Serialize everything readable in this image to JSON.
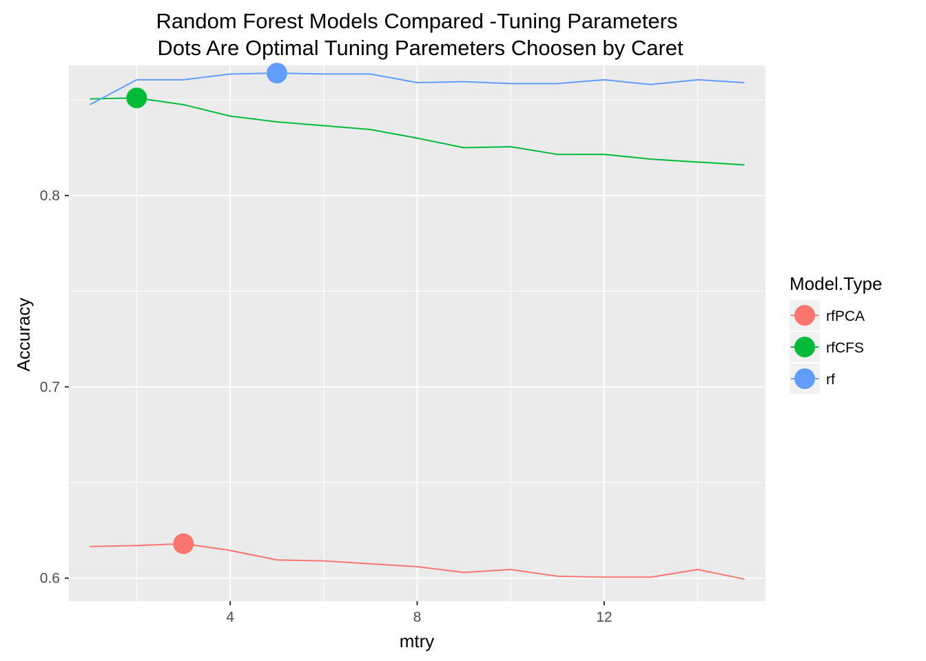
{
  "chart_data": {
    "type": "line",
    "title_lines": [
      "Random Forest Models Compared -Tuning Parameters",
      "Dots Are Optimal Tuning Paremeters Choosen by Caret"
    ],
    "xlabel": "mtry",
    "ylabel": "Accuracy",
    "xlim": [
      0.55,
      15.45
    ],
    "ylim": [
      0.588,
      0.868
    ],
    "x_major_ticks": [
      4,
      8,
      12
    ],
    "x_minor_ticks": [
      2,
      6,
      10,
      14
    ],
    "x_tick_labels": [
      "4",
      "8",
      "12"
    ],
    "y_major_ticks": [
      0.6,
      0.7,
      0.8
    ],
    "y_minor_ticks": [
      0.65,
      0.75,
      0.85
    ],
    "y_tick_labels": [
      "0.6",
      "0.7",
      "0.8"
    ],
    "grid": true,
    "legend": {
      "title": "Model.Type",
      "position": "right",
      "entries": [
        "rfPCA",
        "rfCFS",
        "rf"
      ]
    },
    "series": [
      {
        "name": "rfPCA",
        "color": "#F8766D",
        "x": [
          1,
          2,
          3,
          4,
          5,
          6,
          7,
          8,
          9,
          10,
          11,
          12,
          13,
          14,
          15
        ],
        "y": [
          0.6165,
          0.617,
          0.618,
          0.6145,
          0.6095,
          0.609,
          0.6075,
          0.606,
          0.603,
          0.6045,
          0.601,
          0.6005,
          0.6005,
          0.6045,
          0.5995
        ],
        "optimal": {
          "x": 3,
          "y": 0.618
        }
      },
      {
        "name": "rfCFS",
        "color": "#00BA38",
        "x": [
          1,
          2,
          3,
          4,
          5,
          6,
          7,
          8,
          9,
          10,
          11,
          12,
          13,
          14,
          15
        ],
        "y": [
          0.8505,
          0.851,
          0.8475,
          0.8415,
          0.8385,
          0.8365,
          0.8345,
          0.83,
          0.825,
          0.8255,
          0.8215,
          0.8215,
          0.819,
          0.8175,
          0.816
        ],
        "optimal": {
          "x": 2,
          "y": 0.851
        }
      },
      {
        "name": "rf",
        "color": "#619CFF",
        "x": [
          1,
          2,
          3,
          4,
          5,
          6,
          7,
          8,
          9,
          10,
          11,
          12,
          13,
          14,
          15
        ],
        "y": [
          0.8475,
          0.8605,
          0.8605,
          0.8635,
          0.864,
          0.8635,
          0.8635,
          0.859,
          0.8595,
          0.8585,
          0.8585,
          0.8605,
          0.858,
          0.8605,
          0.859
        ],
        "optimal": {
          "x": 5,
          "y": 0.864
        }
      }
    ]
  }
}
